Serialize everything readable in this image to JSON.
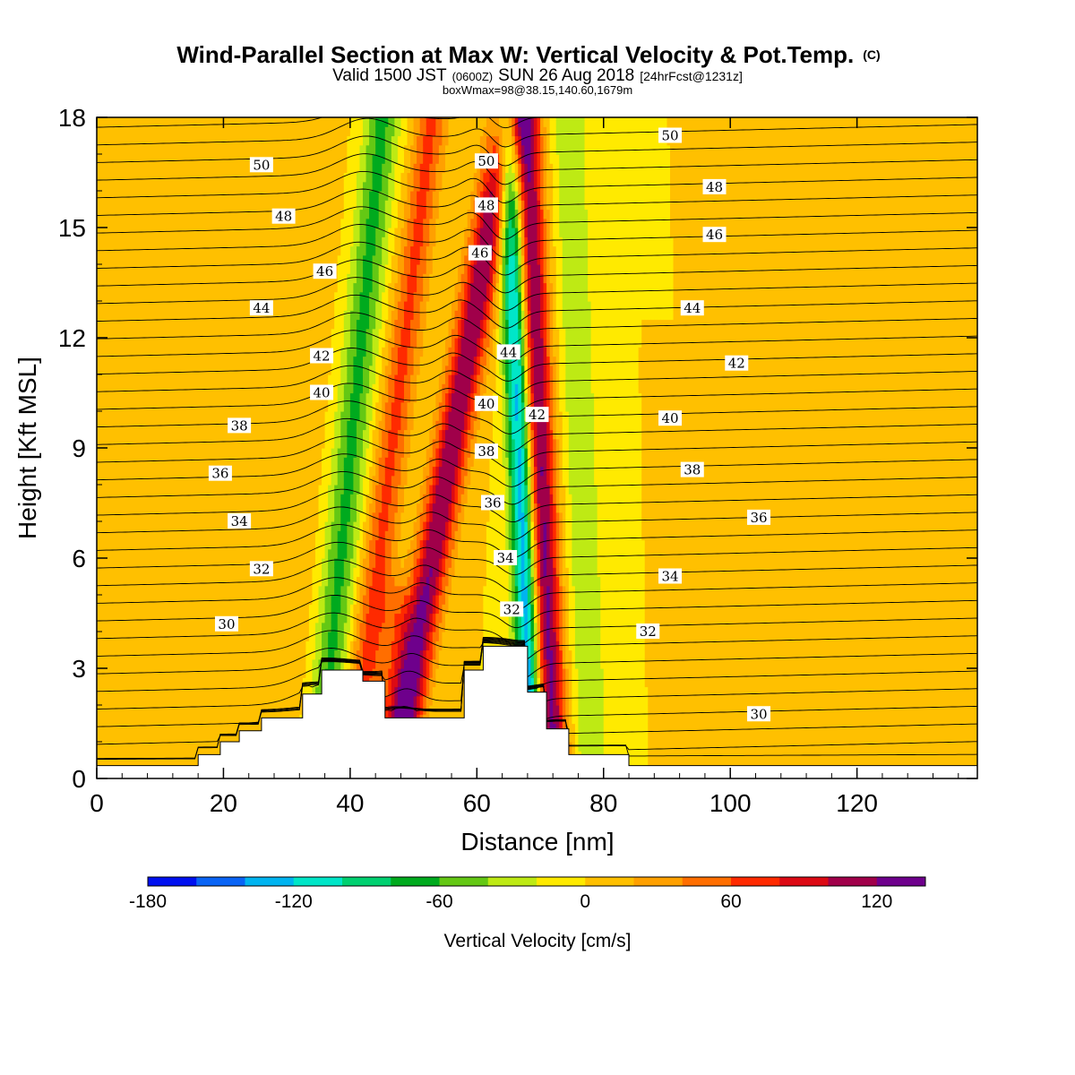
{
  "header": {
    "title": "Wind-Parallel Section at Max W: Vertical Velocity & Pot.Temp.",
    "title_mark": "(C)",
    "valid_a": "Valid 1500 JST",
    "valid_utc": "(0600Z)",
    "valid_b": "SUN 26 Aug 2018",
    "fcst": "[24hrFcst@1231z]",
    "box_info": "boxWmax=98@38.15,140.60,1679m"
  },
  "chart_data": {
    "type": "heatmap",
    "xlabel": "Distance [nm]",
    "ylabel": "Height [Kft MSL]",
    "xlim": [
      0,
      139
    ],
    "ylim": [
      0,
      18
    ],
    "x_ticks": [
      0,
      20,
      40,
      60,
      80,
      100,
      120
    ],
    "y_ticks": [
      0,
      3,
      6,
      9,
      12,
      15,
      18
    ],
    "colorbar": {
      "label": "Vertical Velocity [cm/s]",
      "min": -180,
      "max": 140,
      "step": 20,
      "tick_values": [
        -180,
        -120,
        -60,
        0,
        60,
        120
      ],
      "tick_labels": [
        "-180",
        "-120",
        "-60",
        "0",
        "60",
        "120"
      ],
      "colors": [
        "#0010f0",
        "#0a64f5",
        "#00b4f0",
        "#00e6c8",
        "#00d070",
        "#00aa1e",
        "#64c814",
        "#beea14",
        "#ffea00",
        "#ffc000",
        "#ffa000",
        "#ff6e00",
        "#ff2a00",
        "#dc0a14",
        "#a0004a",
        "#6e008c"
      ]
    },
    "terrain_steps": [
      [
        0,
        0.35
      ],
      [
        16,
        0.35
      ],
      [
        16,
        0.65
      ],
      [
        19.5,
        0.65
      ],
      [
        19.5,
        1.0
      ],
      [
        22.5,
        1.0
      ],
      [
        22.5,
        1.3
      ],
      [
        26,
        1.3
      ],
      [
        26,
        1.65
      ],
      [
        32.5,
        1.65
      ],
      [
        32.5,
        2.3
      ],
      [
        35.5,
        2.3
      ],
      [
        35.5,
        2.95
      ],
      [
        42,
        2.95
      ],
      [
        42,
        2.65
      ],
      [
        45.5,
        2.65
      ],
      [
        45.5,
        1.65
      ],
      [
        58,
        1.65
      ],
      [
        58,
        2.95
      ],
      [
        61,
        2.95
      ],
      [
        61,
        3.6
      ],
      [
        68,
        3.6
      ],
      [
        68,
        2.35
      ],
      [
        71,
        2.35
      ],
      [
        71,
        1.35
      ],
      [
        74.5,
        1.35
      ],
      [
        74.5,
        0.65
      ],
      [
        84,
        0.65
      ],
      [
        84,
        0.35
      ],
      [
        139,
        0.35
      ]
    ],
    "velocity_bands": [
      {
        "x": 53,
        "slope": 1.0,
        "w": 2.8,
        "amp": 120
      },
      {
        "x": 44.5,
        "slope": 0.7,
        "w": 2.6,
        "amp": 65
      },
      {
        "x": 38.5,
        "slope": 0.55,
        "w": 2.8,
        "amp": -65
      },
      {
        "x": 67.6,
        "slope": -0.22,
        "w": 2.0,
        "amp": -150
      },
      {
        "x": 70.5,
        "slope": -0.25,
        "w": 2.4,
        "amp": 135
      },
      {
        "x": 77.0,
        "slope": -0.2,
        "w": 2.6,
        "amp": -40
      },
      {
        "x": 30.0,
        "slope": 0.3,
        "w": 4.5,
        "amp": 18
      },
      {
        "x": 47.5,
        "slope": 0.0,
        "w": 3.0,
        "amp": 40,
        "y_max": 4.5
      },
      {
        "x": 16,
        "slope": 0.0,
        "w": 7,
        "amp": 15,
        "y_max": 11
      },
      {
        "x": 100,
        "slope": 0.0,
        "w": 4,
        "amp": 13,
        "y_max": 11
      },
      {
        "x": 125,
        "slope": 0.0,
        "w": 10,
        "amp": 16,
        "y_max": 9
      }
    ],
    "theta_levels_count": 38,
    "theta_labels": [
      {
        "x": 26.0,
        "y": 16.7,
        "v": "50"
      },
      {
        "x": 29.5,
        "y": 15.3,
        "v": "48"
      },
      {
        "x": 36.0,
        "y": 13.8,
        "v": "46"
      },
      {
        "x": 26.0,
        "y": 12.8,
        "v": "44"
      },
      {
        "x": 35.5,
        "y": 11.5,
        "v": "42"
      },
      {
        "x": 35.5,
        "y": 10.5,
        "v": "40"
      },
      {
        "x": 22.5,
        "y": 9.6,
        "v": "38"
      },
      {
        "x": 19.5,
        "y": 8.3,
        "v": "36"
      },
      {
        "x": 22.5,
        "y": 7.0,
        "v": "34"
      },
      {
        "x": 26.0,
        "y": 5.7,
        "v": "32"
      },
      {
        "x": 20.5,
        "y": 4.2,
        "v": "30"
      },
      {
        "x": 61.5,
        "y": 16.8,
        "v": "50"
      },
      {
        "x": 61.5,
        "y": 15.6,
        "v": "48"
      },
      {
        "x": 60.5,
        "y": 14.3,
        "v": "46"
      },
      {
        "x": 65.0,
        "y": 11.6,
        "v": "44"
      },
      {
        "x": 69.5,
        "y": 9.9,
        "v": "42"
      },
      {
        "x": 61.5,
        "y": 10.2,
        "v": "40"
      },
      {
        "x": 61.5,
        "y": 8.9,
        "v": "38"
      },
      {
        "x": 62.5,
        "y": 7.5,
        "v": "36"
      },
      {
        "x": 64.5,
        "y": 6.0,
        "v": "34"
      },
      {
        "x": 65.5,
        "y": 4.6,
        "v": "32"
      },
      {
        "x": 90.5,
        "y": 17.5,
        "v": "50"
      },
      {
        "x": 97.5,
        "y": 16.1,
        "v": "48"
      },
      {
        "x": 97.5,
        "y": 14.8,
        "v": "46"
      },
      {
        "x": 94.0,
        "y": 12.8,
        "v": "44"
      },
      {
        "x": 101.0,
        "y": 11.3,
        "v": "42"
      },
      {
        "x": 90.5,
        "y": 9.8,
        "v": "40"
      },
      {
        "x": 94.0,
        "y": 8.4,
        "v": "38"
      },
      {
        "x": 104.5,
        "y": 7.1,
        "v": "36"
      },
      {
        "x": 90.5,
        "y": 5.5,
        "v": "34"
      },
      {
        "x": 87.0,
        "y": 4.0,
        "v": "32"
      },
      {
        "x": 104.5,
        "y": 1.75,
        "v": "30"
      }
    ]
  }
}
